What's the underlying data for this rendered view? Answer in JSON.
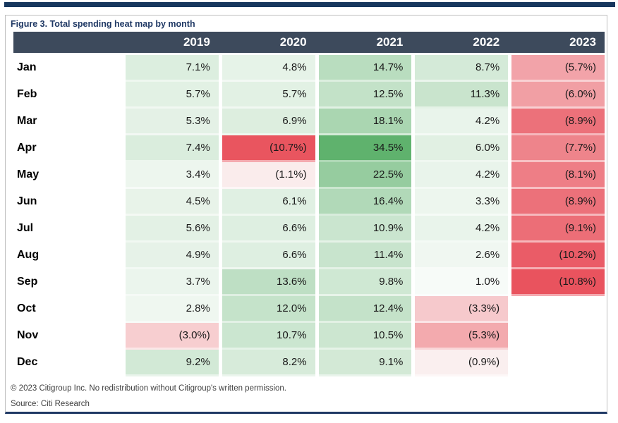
{
  "figure": {
    "title": "Figure 3. Total spending heat map by month",
    "copyright": "© 2023 Citigroup Inc. No redistribution without Citigroup's written permission.",
    "source": "Source: Citi Research"
  },
  "colors": {
    "top_rule": "#17375E",
    "bottom_rule": "#1F3864",
    "figure_border": "#C0C0C0",
    "header_bg": "#3D4A5C",
    "header_text": "#FFFFFF",
    "title_text": "#1F3864",
    "value_text": "#1A1A1A",
    "footer_text": "#404040"
  },
  "chart_data": {
    "type": "heatmap",
    "title": "Figure 3. Total spending heat map by month",
    "columns": [
      "2019",
      "2020",
      "2021",
      "2022",
      "2023"
    ],
    "rows": [
      "Jan",
      "Feb",
      "Mar",
      "Apr",
      "May",
      "Jun",
      "Jul",
      "Aug",
      "Sep",
      "Oct",
      "Nov",
      "Dec"
    ],
    "value_format": "percent, negatives shown in parentheses",
    "series": [
      {
        "name": "2019",
        "values": [
          7.1,
          5.7,
          5.3,
          7.4,
          3.4,
          4.5,
          5.6,
          4.9,
          3.7,
          2.8,
          -3.0,
          9.2
        ],
        "labels": [
          "7.1%",
          "5.7%",
          "5.3%",
          "7.4%",
          "3.4%",
          "4.5%",
          "5.6%",
          "4.9%",
          "3.7%",
          "2.8%",
          "(3.0%)",
          "9.2%"
        ]
      },
      {
        "name": "2020",
        "values": [
          4.8,
          5.7,
          6.9,
          -10.7,
          -1.1,
          6.1,
          6.6,
          6.6,
          13.6,
          12.0,
          10.7,
          8.2
        ],
        "labels": [
          "4.8%",
          "5.7%",
          "6.9%",
          "(10.7%)",
          "(1.1%)",
          "6.1%",
          "6.6%",
          "6.6%",
          "13.6%",
          "12.0%",
          "10.7%",
          "8.2%"
        ]
      },
      {
        "name": "2021",
        "values": [
          14.7,
          12.5,
          18.1,
          34.5,
          22.5,
          16.4,
          10.9,
          11.4,
          9.8,
          12.4,
          10.5,
          9.1
        ],
        "labels": [
          "14.7%",
          "12.5%",
          "18.1%",
          "34.5%",
          "22.5%",
          "16.4%",
          "10.9%",
          "11.4%",
          "9.8%",
          "12.4%",
          "10.5%",
          "9.1%"
        ]
      },
      {
        "name": "2022",
        "values": [
          8.7,
          11.3,
          4.2,
          6.0,
          4.2,
          3.3,
          4.2,
          2.6,
          1.0,
          -3.3,
          -5.3,
          -0.9
        ],
        "labels": [
          "8.7%",
          "11.3%",
          "4.2%",
          "6.0%",
          "4.2%",
          "3.3%",
          "4.2%",
          "2.6%",
          "1.0%",
          "(3.3%)",
          "(5.3%)",
          "(0.9%)"
        ]
      },
      {
        "name": "2023",
        "values": [
          -5.7,
          -6.0,
          -8.9,
          -7.7,
          -8.1,
          -8.9,
          -9.1,
          -10.2,
          -10.8,
          null,
          null,
          null
        ],
        "labels": [
          "(5.7%)",
          "(6.0%)",
          "(8.9%)",
          "(7.7%)",
          "(8.1%)",
          "(8.9%)",
          "(9.1%)",
          "(10.2%)",
          "(10.8%)",
          "",
          "",
          ""
        ]
      }
    ],
    "color_scale": {
      "min": -10.8,
      "mid": 0,
      "max": 34.5,
      "min_color": "#E9535E",
      "mid_color": "#FCFDFC",
      "max_color": "#5FB26D"
    },
    "legend": "none",
    "grid": "white gaps between columns, light tint separators between rows"
  }
}
